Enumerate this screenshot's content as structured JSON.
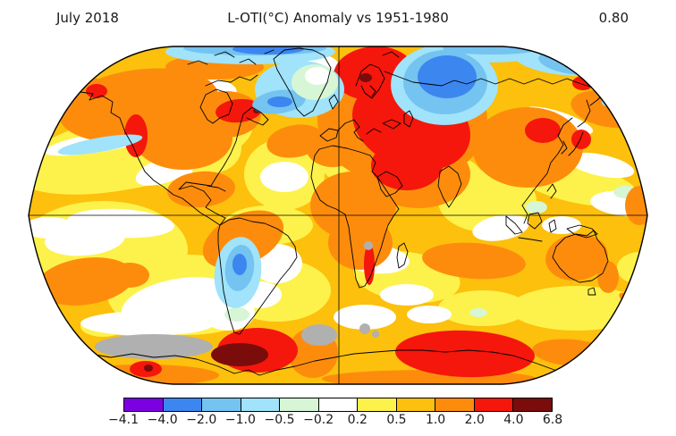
{
  "header": {
    "date_label": "July 2018",
    "title": "L-OTI(°C) Anomaly vs 1951-1980",
    "mean_value": "0.80"
  },
  "chart_data": {
    "type": "heatmap",
    "title": "L-OTI(°C) Anomaly vs 1951-1980",
    "period": "July 2018",
    "baseline_period": "1951-1980",
    "units": "°C",
    "global_mean_anomaly_c": 0.8,
    "projection": "robinson",
    "grid": "equator and prime-meridian lines only",
    "colorbar": {
      "orientation": "horizontal",
      "position": "bottom",
      "boundary_labels": [
        "−4.1",
        "−4.0",
        "−2.0",
        "−1.0",
        "−0.5",
        "−0.2",
        "0.2",
        "0.5",
        "1.0",
        "2.0",
        "4.0",
        "6.8"
      ],
      "segment_colors": [
        "#7c00e0",
        "#3c86f0",
        "#74c3f0",
        "#a0e3fa",
        "#d6f6d6",
        "#ffffff",
        "#fdf24b",
        "#fcc00d",
        "#fd8c0d",
        "#f5160c",
        "#7a0c0c"
      ],
      "missing_data_color": "#b0b0b0"
    },
    "notable_regions": [
      {
        "region": "Scandinavia, Europe, western Russia, Middle East",
        "anomaly_c": "+2 to +4"
      },
      {
        "region": "Central Arctic / north-central Siberian coast",
        "anomaly_c": "-1 to -2"
      },
      {
        "region": "North Atlantic south of Greenland (Labrador Sea)",
        "anomaly_c": "-0.5 to -2"
      },
      {
        "region": "Southwestern United States / California",
        "anomaly_c": "+2 to +4"
      },
      {
        "region": "Eastern Canada (Quebec / Labrador)",
        "anomaly_c": "+2 to +4"
      },
      {
        "region": "Northeastern Asia",
        "anomaly_c": "+2 to +4"
      },
      {
        "region": "Southern South America (Argentina/Chile)",
        "anomaly_c": "-0.5 to -1"
      },
      {
        "region": "West Antarctica",
        "anomaly_c": "+4 to +6.8"
      },
      {
        "region": "East Antarctic coastal band",
        "anomaly_c": "+2 to +4"
      },
      {
        "region": "Parts of Antarctica and Namibia coast",
        "anomaly_c": "no data (gray)"
      },
      {
        "region": "Most ocean areas",
        "anomaly_c": "+0.2 to +1"
      }
    ]
  }
}
